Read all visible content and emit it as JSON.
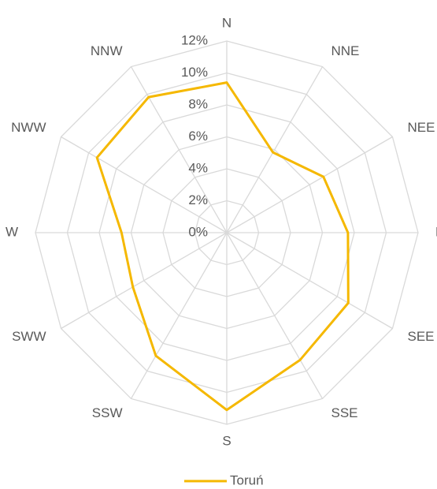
{
  "chart_data": {
    "type": "radar",
    "categories": [
      "N",
      "NNE",
      "NEE",
      "E",
      "SEE",
      "SSE",
      "S",
      "SSW",
      "SWW",
      "W",
      "NWW",
      "NNW"
    ],
    "series": [
      {
        "name": "Toruń",
        "color": "#f5b800",
        "values": [
          9.4,
          5.8,
          7.0,
          7.6,
          8.8,
          9.2,
          11.1,
          8.9,
          6.8,
          6.6,
          9.4,
          9.8
        ]
      }
    ],
    "rlim": [
      0,
      12
    ],
    "rticks": [
      {
        "value": 0,
        "label": "0%"
      },
      {
        "value": 2,
        "label": "2%"
      },
      {
        "value": 4,
        "label": "4%"
      },
      {
        "value": 6,
        "label": "6%"
      },
      {
        "value": 8,
        "label": "8%"
      },
      {
        "value": 10,
        "label": "10%"
      },
      {
        "value": 12,
        "label": "12%"
      }
    ],
    "grid": true,
    "legend": "bottom"
  }
}
